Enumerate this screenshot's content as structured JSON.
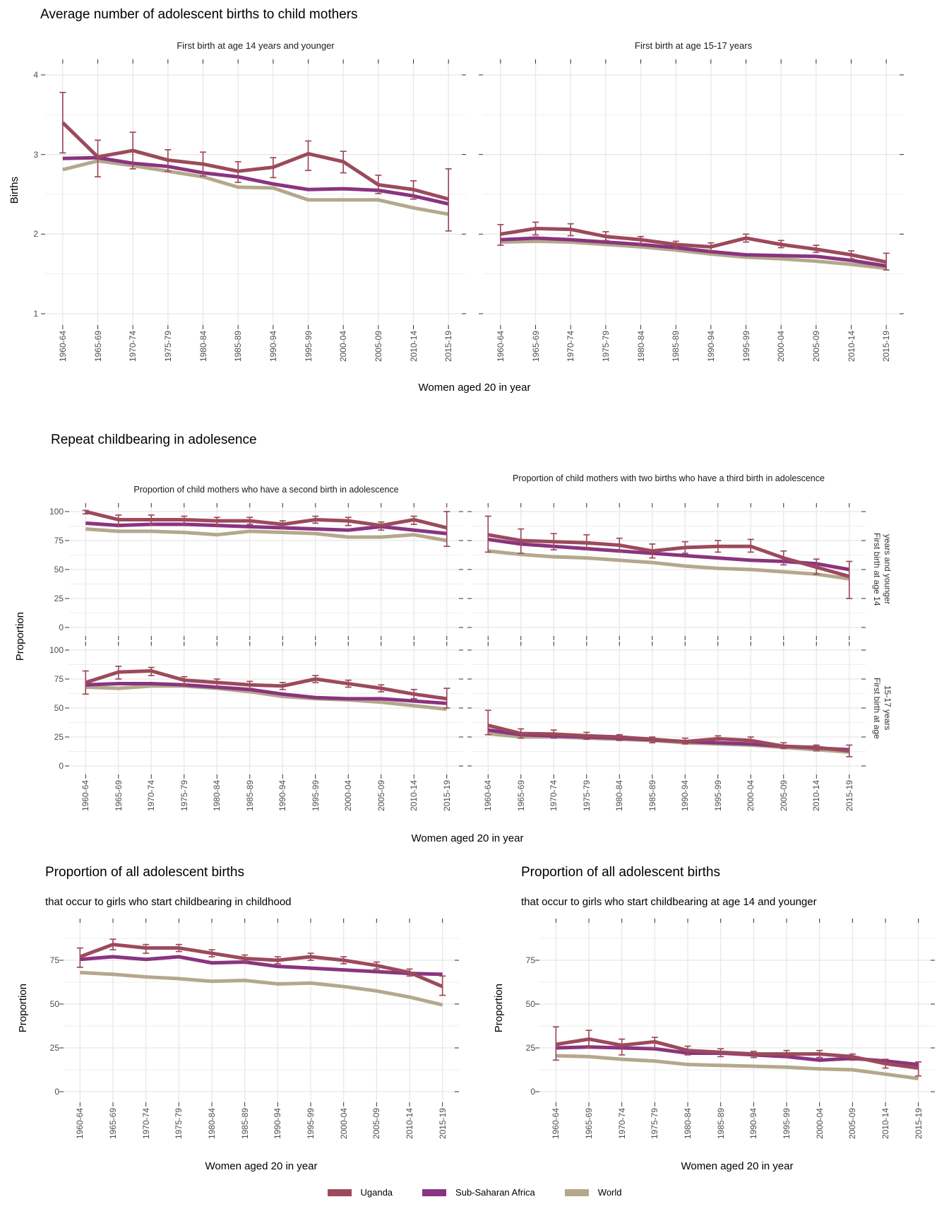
{
  "colors": {
    "uganda": "#9c4a5c",
    "ssa": "#8a3480",
    "world": "#b4a88c",
    "grid": "#e8e8e8",
    "tick": "#333333",
    "tick_text": "#4d4d4d"
  },
  "categories": [
    "1960-64",
    "1965-69",
    "1970-74",
    "1975-79",
    "1980-84",
    "1985-89",
    "1990-94",
    "1995-99",
    "2000-04",
    "2005-09",
    "2010-14",
    "2015-19"
  ],
  "section1": {
    "title": "Average number of adolescent births to child mothers",
    "panel1_title": "First birth at age 14 years and younger",
    "panel2_title": "First birth at age 15-17 years",
    "ylabel": "Births",
    "xlabel": "Women aged 20 in year"
  },
  "section2": {
    "title": "Repeat childbearing in adolesence",
    "panel1_title": "Proportion of child mothers who have a second birth in adolescence",
    "panel2_title": "Proportion of child mothers with two births who have a third birth in adolescence",
    "ylabel": "Proportion",
    "xlabel": "Women aged 20 in year",
    "strip_row1_line1": "First birth at age 14",
    "strip_row1_line2": "years and younger",
    "strip_row2_line1": "First birth at age",
    "strip_row2_line2": "15-17 years"
  },
  "section3": {
    "left": {
      "title": "Proportion of all adolescent births",
      "subtitle": "that occur to girls who start childbearing in childhood",
      "ylabel": "Proportion",
      "xlabel": "Women aged 20 in year"
    },
    "right": {
      "title": "Proportion of all adolescent births",
      "subtitle": "that occur to girls who start childbearing at age 14 and younger",
      "ylabel": "Proportion",
      "xlabel": "Women aged 20 in year"
    }
  },
  "legend": {
    "items": [
      {
        "label": "Uganda",
        "color": "uganda"
      },
      {
        "label": "Sub-Saharan Africa",
        "color": "ssa"
      },
      {
        "label": "World",
        "color": "world"
      }
    ]
  },
  "chart_data": [
    {
      "id": "births_14",
      "type": "line",
      "panel_title": "First birth at age 14 years and younger",
      "xlabel": "Women aged 20 in year",
      "ylabel": "Births",
      "ylim": [
        0.86,
        4.2
      ],
      "yticks": [
        1,
        2,
        3,
        4
      ],
      "series": [
        {
          "name": "Uganda",
          "color": "uganda",
          "values": [
            3.4,
            2.97,
            3.05,
            2.93,
            2.88,
            2.79,
            2.84,
            3.01,
            2.91,
            2.62,
            2.56,
            2.44
          ],
          "errors": [
            [
              3.02,
              3.78
            ],
            [
              2.72,
              3.18
            ],
            [
              2.82,
              3.28
            ],
            [
              2.79,
              3.06
            ],
            [
              2.73,
              3.03
            ],
            [
              2.65,
              2.91
            ],
            [
              2.71,
              2.96
            ],
            [
              2.8,
              3.17
            ],
            [
              2.77,
              3.04
            ],
            [
              2.51,
              2.74
            ],
            [
              2.44,
              2.67
            ],
            [
              2.04,
              2.82
            ]
          ]
        },
        {
          "name": "Sub-Saharan Africa",
          "color": "ssa",
          "values": [
            2.95,
            2.96,
            2.89,
            2.85,
            2.77,
            2.72,
            2.63,
            2.56,
            2.57,
            2.55,
            2.48,
            2.38
          ]
        },
        {
          "name": "World",
          "color": "world",
          "values": [
            2.81,
            2.92,
            2.86,
            2.79,
            2.72,
            2.59,
            2.58,
            2.43,
            2.43,
            2.43,
            2.33,
            2.25
          ]
        }
      ]
    },
    {
      "id": "births_1517",
      "type": "line",
      "panel_title": "First birth at age 15-17 years",
      "xlabel": "Women aged 20 in year",
      "ylabel": "Births",
      "ylim": [
        0.86,
        4.2
      ],
      "yticks": [
        1,
        2,
        3,
        4
      ],
      "series": [
        {
          "name": "Uganda",
          "color": "uganda",
          "values": [
            2.0,
            2.07,
            2.06,
            1.97,
            1.93,
            1.87,
            1.84,
            1.95,
            1.87,
            1.81,
            1.74,
            1.65
          ],
          "errors": [
            [
              1.86,
              2.12
            ],
            [
              1.99,
              2.15
            ],
            [
              1.98,
              2.13
            ],
            [
              1.92,
              2.03
            ],
            [
              1.88,
              1.97
            ],
            [
              1.82,
              1.91
            ],
            [
              1.79,
              1.89
            ],
            [
              1.9,
              2.0
            ],
            [
              1.83,
              1.92
            ],
            [
              1.77,
              1.86
            ],
            [
              1.69,
              1.79
            ],
            [
              1.55,
              1.76
            ]
          ]
        },
        {
          "name": "Sub-Saharan Africa",
          "color": "ssa",
          "values": [
            1.93,
            1.95,
            1.93,
            1.9,
            1.87,
            1.83,
            1.78,
            1.74,
            1.73,
            1.72,
            1.67,
            1.6
          ]
        },
        {
          "name": "World",
          "color": "world",
          "values": [
            1.9,
            1.91,
            1.9,
            1.87,
            1.84,
            1.8,
            1.75,
            1.71,
            1.69,
            1.66,
            1.62,
            1.57
          ]
        }
      ]
    },
    {
      "id": "second_14",
      "type": "line",
      "panel_title": "Proportion of child mothers who have a second birth in adolescence",
      "facet_row": "First birth at age 14 years and younger",
      "xlabel": "Women aged 20 in year",
      "ylabel": "Proportion",
      "ylim": [
        -7,
        107
      ],
      "yticks": [
        0,
        25,
        50,
        75,
        100
      ],
      "series": [
        {
          "name": "Uganda",
          "color": "uganda",
          "values": [
            100,
            93,
            93,
            93,
            92,
            92,
            89,
            93,
            92,
            88,
            93,
            86
          ],
          "errors": [
            [
              98,
              101
            ],
            [
              87,
              97
            ],
            [
              89,
              97
            ],
            [
              90,
              96
            ],
            [
              88,
              95
            ],
            [
              89,
              95
            ],
            [
              85,
              92
            ],
            [
              90,
              96
            ],
            [
              88,
              95
            ],
            [
              84,
              91
            ],
            [
              89,
              96
            ],
            [
              70,
              100
            ]
          ]
        },
        {
          "name": "Sub-Saharan Africa",
          "color": "ssa",
          "values": [
            90,
            88,
            89,
            89,
            88,
            87,
            86,
            85,
            84,
            87,
            84,
            81
          ]
        },
        {
          "name": "World",
          "color": "world",
          "values": [
            85,
            83,
            83,
            82,
            80,
            83,
            82,
            81,
            78,
            78,
            80,
            75
          ]
        }
      ]
    },
    {
      "id": "third_14",
      "type": "line",
      "panel_title": "Proportion of child mothers with two births who have a third birth in adolescence",
      "facet_row": "First birth at age 14 years and younger",
      "xlabel": "Women aged 20 in year",
      "ylabel": "Proportion",
      "ylim": [
        -7,
        107
      ],
      "yticks": [
        0,
        25,
        50,
        75,
        100
      ],
      "series": [
        {
          "name": "Uganda",
          "color": "uganda",
          "values": [
            80,
            75,
            74,
            73,
            71,
            66,
            69,
            70,
            70,
            60,
            52,
            44
          ],
          "errors": [
            [
              65,
              96
            ],
            [
              64,
              85
            ],
            [
              67,
              81
            ],
            [
              67,
              80
            ],
            [
              65,
              77
            ],
            [
              60,
              72
            ],
            [
              64,
              74
            ],
            [
              65,
              75
            ],
            [
              65,
              76
            ],
            [
              54,
              66
            ],
            [
              46,
              59
            ],
            [
              25,
              57
            ]
          ]
        },
        {
          "name": "Sub-Saharan Africa",
          "color": "ssa",
          "values": [
            76,
            72,
            70,
            68,
            66,
            64,
            62,
            60,
            58,
            57,
            55,
            50
          ]
        },
        {
          "name": "World",
          "color": "world",
          "values": [
            66,
            63,
            61,
            60,
            58,
            56,
            53,
            51,
            50,
            48,
            46,
            42
          ]
        }
      ]
    },
    {
      "id": "second_1517",
      "type": "line",
      "panel_title": "Proportion of child mothers who have a second birth in adolescence",
      "facet_row": "First birth at age 15-17 years",
      "xlabel": "Women aged 20 in year",
      "ylabel": "Proportion",
      "ylim": [
        -7,
        107
      ],
      "yticks": [
        0,
        25,
        50,
        75,
        100
      ],
      "series": [
        {
          "name": "Uganda",
          "color": "uganda",
          "values": [
            72,
            81,
            82,
            74,
            72,
            70,
            69,
            75,
            71,
            67,
            62,
            58
          ],
          "errors": [
            [
              62,
              82
            ],
            [
              75,
              86
            ],
            [
              78,
              85
            ],
            [
              70,
              77
            ],
            [
              69,
              75
            ],
            [
              67,
              73
            ],
            [
              66,
              72
            ],
            [
              72,
              78
            ],
            [
              68,
              74
            ],
            [
              64,
              70
            ],
            [
              58,
              66
            ],
            [
              50,
              67
            ]
          ]
        },
        {
          "name": "Sub-Saharan Africa",
          "color": "ssa",
          "values": [
            70,
            71,
            71,
            70,
            68,
            66,
            62,
            59,
            58,
            58,
            56,
            54
          ]
        },
        {
          "name": "World",
          "color": "world",
          "values": [
            68,
            67,
            69,
            69,
            67,
            64,
            60,
            58,
            57,
            55,
            52,
            49
          ]
        }
      ]
    },
    {
      "id": "third_1517",
      "type": "line",
      "panel_title": "Proportion of child mothers with two births who have a third birth in adolescence",
      "facet_row": "First birth at age 15-17 years",
      "xlabel": "Women aged 20 in year",
      "ylabel": "Proportion",
      "ylim": [
        -7,
        107
      ],
      "yticks": [
        0,
        25,
        50,
        75,
        100
      ],
      "series": [
        {
          "name": "Uganda",
          "color": "uganda",
          "values": [
            35,
            28,
            27.5,
            26,
            25,
            23,
            21,
            23.5,
            22,
            17,
            16,
            13
          ],
          "errors": [
            [
              27,
              48
            ],
            [
              24,
              32
            ],
            [
              24,
              31
            ],
            [
              23,
              29
            ],
            [
              22,
              27
            ],
            [
              20,
              25
            ],
            [
              19,
              24
            ],
            [
              21,
              26
            ],
            [
              20,
              25
            ],
            [
              15,
              20
            ],
            [
              13,
              18
            ],
            [
              8,
              18
            ]
          ]
        },
        {
          "name": "Sub-Saharan Africa",
          "color": "ssa",
          "values": [
            31,
            27,
            26,
            25,
            24,
            22.5,
            21,
            20,
            19,
            17,
            15.5,
            14
          ]
        },
        {
          "name": "World",
          "color": "world",
          "values": [
            28,
            25,
            25,
            24,
            23,
            22,
            20,
            19,
            18,
            16,
            14,
            12
          ]
        }
      ]
    },
    {
      "id": "all_childhood",
      "type": "line",
      "panel_title": "Proportion of all adolescent births that occur to girls who start childbearing in childhood",
      "xlabel": "Women aged 20 in year",
      "ylabel": "Proportion",
      "ylim": [
        -6,
        99
      ],
      "yticks": [
        0,
        25,
        50,
        75
      ],
      "series": [
        {
          "name": "Uganda",
          "color": "uganda",
          "values": [
            77,
            84,
            82,
            82,
            79,
            76,
            75,
            77,
            75,
            72,
            68,
            60
          ],
          "errors": [
            [
              71,
              82
            ],
            [
              81,
              87
            ],
            [
              79,
              84
            ],
            [
              80,
              84
            ],
            [
              77,
              81
            ],
            [
              74,
              78
            ],
            [
              73,
              77
            ],
            [
              75,
              79
            ],
            [
              73,
              77
            ],
            [
              70,
              74
            ],
            [
              66,
              70
            ],
            [
              55,
              66
            ]
          ]
        },
        {
          "name": "Sub-Saharan Africa",
          "color": "ssa",
          "values": [
            75.5,
            77,
            75.5,
            77,
            73.5,
            74,
            71.5,
            70.5,
            69.5,
            68.5,
            67.5,
            67
          ]
        },
        {
          "name": "World",
          "color": "world",
          "values": [
            68,
            67,
            65.5,
            64.5,
            63,
            63.5,
            61.5,
            62,
            60,
            57.5,
            54,
            49.5
          ]
        }
      ]
    },
    {
      "id": "all_14",
      "type": "line",
      "panel_title": "Proportion of all adolescent births that occur to girls who start childbearing at age 14 and younger",
      "xlabel": "Women aged 20 in year",
      "ylabel": "Proportion",
      "ylim": [
        -6,
        99
      ],
      "yticks": [
        0,
        25,
        50,
        75
      ],
      "series": [
        {
          "name": "Uganda",
          "color": "uganda",
          "values": [
            27,
            30,
            26.5,
            28.5,
            23.5,
            22.5,
            21.5,
            21.5,
            21.5,
            20,
            16,
            13.5
          ],
          "errors": [
            [
              18,
              37
            ],
            [
              25,
              35
            ],
            [
              21,
              30
            ],
            [
              25,
              31
            ],
            [
              21,
              26
            ],
            [
              20,
              24.5
            ],
            [
              19.5,
              23
            ],
            [
              19.5,
              23.5
            ],
            [
              19.5,
              23.5
            ],
            [
              18,
              21.5
            ],
            [
              13.5,
              18.5
            ],
            [
              9,
              17
            ]
          ]
        },
        {
          "name": "Sub-Saharan Africa",
          "color": "ssa",
          "values": [
            25,
            25.5,
            25,
            24.5,
            22,
            22,
            21,
            20,
            18,
            19,
            17.5,
            15.5
          ]
        },
        {
          "name": "World",
          "color": "world",
          "values": [
            20.5,
            20,
            18.5,
            17.5,
            15.5,
            15,
            14.5,
            14,
            13,
            12.5,
            10,
            7.5
          ]
        }
      ]
    }
  ]
}
